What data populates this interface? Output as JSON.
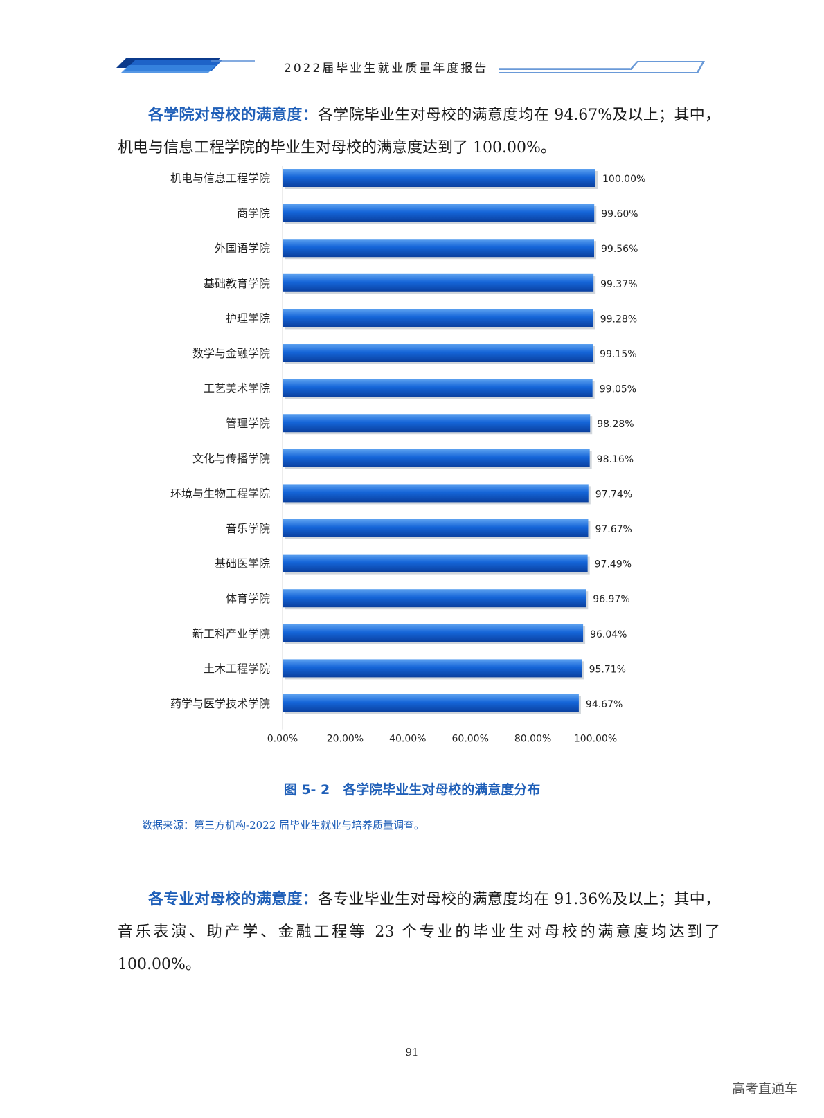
{
  "header": {
    "title": "2022届毕业生就业质量年度报告"
  },
  "para1": {
    "lead": "各学院对母校的满意度：",
    "body": "各学院毕业生对母校的满意度均在 94.67%及以上；其中，机电与信息工程学院的毕业生对母校的满意度达到了 100.00%。"
  },
  "chart_data": {
    "type": "bar",
    "orientation": "horizontal",
    "categories": [
      "机电与信息工程学院",
      "商学院",
      "外国语学院",
      "基础教育学院",
      "护理学院",
      "数学与金融学院",
      "工艺美术学院",
      "管理学院",
      "文化与传播学院",
      "环境与生物工程学院",
      "音乐学院",
      "基础医学院",
      "体育学院",
      "新工科产业学院",
      "土木工程学院",
      "药学与医学技术学院"
    ],
    "values": [
      100.0,
      99.6,
      99.56,
      99.37,
      99.28,
      99.15,
      99.05,
      98.28,
      98.16,
      97.74,
      97.67,
      97.49,
      96.97,
      96.04,
      95.71,
      94.67
    ],
    "value_labels": [
      "100.00%",
      "99.60%",
      "99.56%",
      "99.37%",
      "99.28%",
      "99.15%",
      "99.05%",
      "98.28%",
      "98.16%",
      "97.74%",
      "97.67%",
      "97.49%",
      "96.97%",
      "96.04%",
      "95.71%",
      "94.67%"
    ],
    "xlim": [
      0,
      100
    ],
    "x_ticks": [
      "0.00%",
      "20.00%",
      "40.00%",
      "60.00%",
      "80.00%",
      "100.00%"
    ],
    "grid": false,
    "bar_color": "#1565d8"
  },
  "caption": "图 5- 2　各学院毕业生对母校的满意度分布",
  "source": "数据来源：第三方机构-2022 届毕业生就业与培养质量调查。",
  "para2": {
    "lead": "各专业对母校的满意度：",
    "body": "各专业毕业生对母校的满意度均在 91.36%及以上；其中，音乐表演、助产学、金融工程等 23 个专业的毕业生对母校的满意度均达到了 100.00%。"
  },
  "page_number": "91",
  "watermark": "高考直通车"
}
